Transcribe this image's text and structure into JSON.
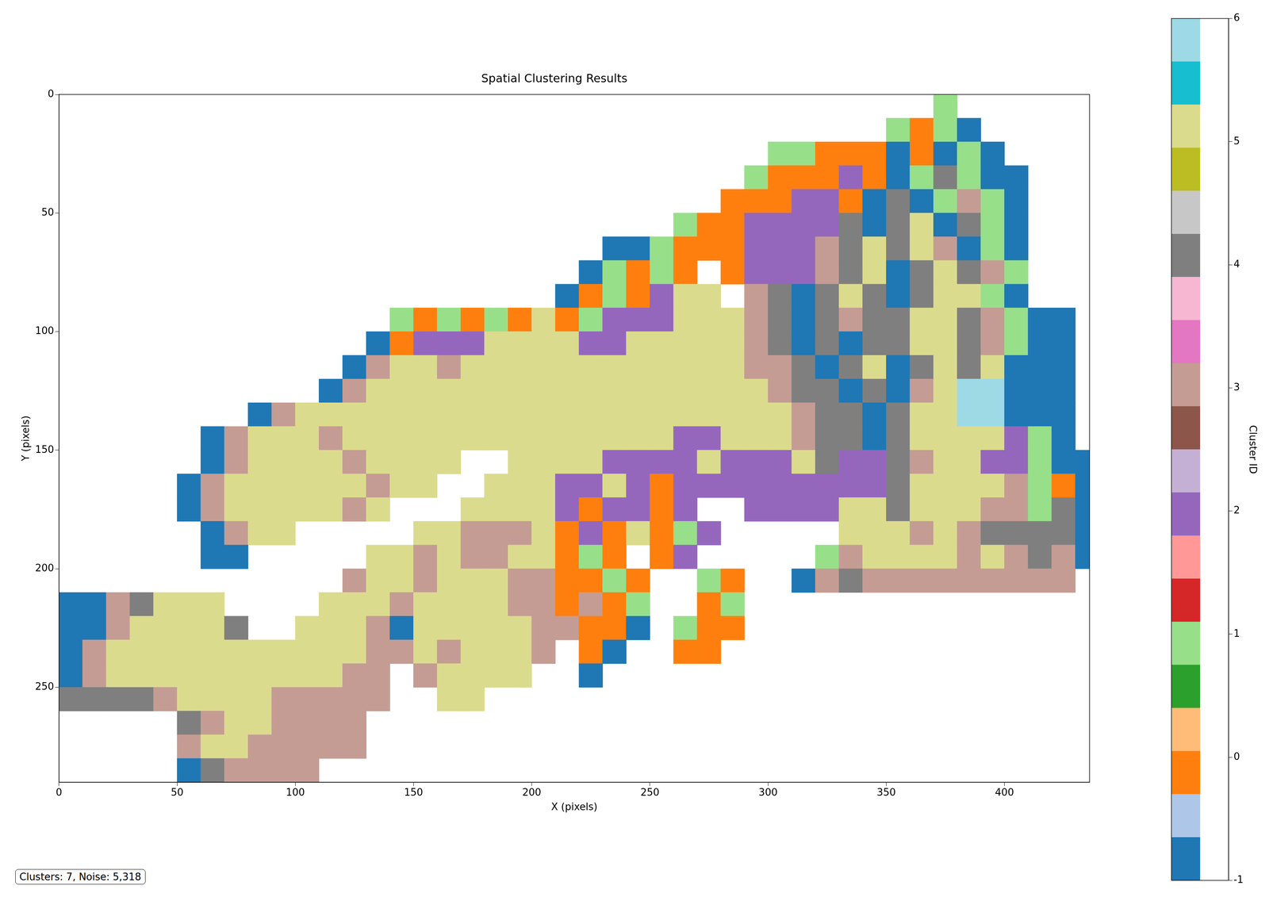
{
  "chart_data": {
    "type": "heatmap",
    "title": "Spatial Clustering Results",
    "x_label": "X (pixels)",
    "y_label": "Y (pixels)",
    "xlim": [
      0,
      436
    ],
    "ylim": [
      290,
      0
    ],
    "xticks": [
      0,
      50,
      100,
      150,
      200,
      250,
      300,
      350,
      400
    ],
    "yticks": [
      0,
      50,
      100,
      150,
      200,
      250
    ],
    "grid": false,
    "annotation": "Clusters: 7, Noise: 5,318",
    "x_bins": [
      0,
      10,
      20,
      30,
      40,
      50,
      60,
      70,
      80,
      90,
      100,
      110,
      120,
      130,
      140,
      150,
      160,
      170,
      180,
      190,
      200,
      210,
      220,
      230,
      240,
      250,
      260,
      270,
      280,
      290,
      300,
      310,
      320,
      330,
      340,
      350,
      360,
      370,
      380,
      390,
      400,
      410,
      420,
      430,
      440
    ],
    "y_bins": [
      0,
      10,
      20,
      30,
      40,
      50,
      60,
      70,
      80,
      90,
      100,
      110,
      120,
      130,
      140,
      150,
      160,
      170,
      180,
      190,
      200,
      210,
      220,
      230,
      240,
      250,
      260,
      270,
      280,
      290
    ],
    "cells": [
      [
        null,
        null,
        null,
        null,
        null,
        null,
        null,
        null,
        null,
        null,
        null,
        null,
        null,
        null,
        null,
        null,
        null,
        null,
        null,
        null,
        null,
        null,
        null,
        null,
        null,
        null,
        null,
        null,
        null,
        null,
        null,
        null,
        null,
        null,
        null,
        null,
        null,
        1,
        null,
        null,
        null,
        null,
        null,
        null
      ],
      [
        null,
        null,
        null,
        null,
        null,
        null,
        null,
        null,
        null,
        null,
        null,
        null,
        null,
        null,
        null,
        null,
        null,
        null,
        null,
        null,
        null,
        null,
        null,
        null,
        null,
        null,
        null,
        null,
        null,
        null,
        null,
        null,
        null,
        null,
        null,
        1,
        0,
        1,
        -1,
        null,
        null,
        null,
        null,
        null
      ],
      [
        null,
        null,
        null,
        null,
        null,
        null,
        null,
        null,
        null,
        null,
        null,
        null,
        null,
        null,
        null,
        null,
        null,
        null,
        null,
        null,
        null,
        null,
        null,
        null,
        null,
        null,
        null,
        null,
        null,
        null,
        1,
        1,
        0,
        0,
        0,
        -1,
        0,
        -1,
        1,
        -1,
        null,
        null,
        null,
        null
      ],
      [
        null,
        null,
        null,
        null,
        null,
        null,
        null,
        null,
        null,
        null,
        null,
        null,
        null,
        null,
        null,
        null,
        null,
        null,
        null,
        null,
        null,
        null,
        null,
        null,
        null,
        null,
        null,
        null,
        null,
        1,
        0,
        0,
        0,
        2,
        0,
        -1,
        1,
        4,
        1,
        -1,
        -1,
        null,
        null,
        null
      ],
      [
        null,
        null,
        null,
        null,
        null,
        null,
        null,
        null,
        null,
        null,
        null,
        null,
        null,
        null,
        null,
        null,
        null,
        null,
        null,
        null,
        null,
        null,
        null,
        null,
        null,
        null,
        null,
        null,
        0,
        0,
        0,
        2,
        2,
        0,
        -1,
        4,
        -1,
        1,
        3,
        1,
        -1,
        null,
        null,
        null
      ],
      [
        null,
        null,
        null,
        null,
        null,
        null,
        null,
        null,
        null,
        null,
        null,
        null,
        null,
        null,
        null,
        null,
        null,
        null,
        null,
        null,
        null,
        null,
        null,
        null,
        null,
        null,
        1,
        0,
        0,
        2,
        2,
        2,
        2,
        4,
        -1,
        4,
        5,
        -1,
        4,
        1,
        -1,
        null,
        null,
        null
      ],
      [
        null,
        null,
        null,
        null,
        null,
        null,
        null,
        null,
        null,
        null,
        null,
        null,
        null,
        null,
        null,
        null,
        null,
        null,
        null,
        null,
        null,
        null,
        null,
        -1,
        -1,
        1,
        0,
        0,
        0,
        2,
        2,
        2,
        3,
        4,
        5,
        4,
        5,
        3,
        -1,
        1,
        -1,
        null,
        null,
        null
      ],
      [
        null,
        null,
        null,
        null,
        null,
        null,
        null,
        null,
        null,
        null,
        null,
        null,
        null,
        null,
        null,
        null,
        null,
        null,
        null,
        null,
        null,
        null,
        -1,
        1,
        0,
        1,
        0,
        null,
        0,
        2,
        2,
        2,
        3,
        4,
        5,
        -1,
        4,
        5,
        4,
        3,
        1,
        null,
        null,
        null
      ],
      [
        null,
        null,
        null,
        null,
        null,
        null,
        null,
        null,
        null,
        null,
        null,
        null,
        null,
        null,
        null,
        null,
        null,
        null,
        null,
        null,
        null,
        -1,
        0,
        1,
        0,
        2,
        5,
        5,
        null,
        3,
        4,
        -1,
        4,
        5,
        4,
        -1,
        4,
        5,
        5,
        1,
        -1,
        null,
        null,
        null
      ],
      [
        null,
        null,
        null,
        null,
        null,
        null,
        null,
        null,
        null,
        null,
        null,
        null,
        null,
        null,
        1,
        0,
        1,
        0,
        1,
        0,
        5,
        0,
        1,
        2,
        2,
        2,
        5,
        5,
        5,
        3,
        4,
        -1,
        4,
        3,
        4,
        4,
        5,
        5,
        4,
        3,
        1,
        -1,
        -1,
        null
      ],
      [
        null,
        null,
        null,
        null,
        null,
        null,
        null,
        null,
        null,
        null,
        null,
        null,
        null,
        -1,
        0,
        2,
        2,
        2,
        5,
        5,
        5,
        5,
        2,
        2,
        5,
        5,
        5,
        5,
        5,
        3,
        4,
        -1,
        4,
        -1,
        4,
        4,
        5,
        5,
        4,
        3,
        1,
        -1,
        -1,
        null
      ],
      [
        null,
        null,
        null,
        null,
        null,
        null,
        null,
        null,
        null,
        null,
        null,
        null,
        -1,
        3,
        5,
        5,
        3,
        5,
        5,
        5,
        5,
        5,
        5,
        5,
        5,
        5,
        5,
        5,
        5,
        3,
        3,
        4,
        -1,
        4,
        5,
        -1,
        4,
        5,
        4,
        5,
        -1,
        -1,
        -1,
        null
      ],
      [
        null,
        null,
        null,
        null,
        null,
        null,
        null,
        null,
        null,
        null,
        null,
        -1,
        3,
        5,
        5,
        5,
        5,
        5,
        5,
        5,
        5,
        5,
        5,
        5,
        5,
        5,
        5,
        5,
        5,
        5,
        3,
        4,
        4,
        -1,
        4,
        -1,
        3,
        5,
        6,
        6,
        -1,
        -1,
        -1,
        null
      ],
      [
        null,
        null,
        null,
        null,
        null,
        null,
        null,
        null,
        -1,
        3,
        5,
        5,
        5,
        5,
        5,
        5,
        5,
        5,
        5,
        5,
        5,
        5,
        5,
        5,
        5,
        5,
        5,
        5,
        5,
        5,
        5,
        3,
        4,
        4,
        -1,
        4,
        5,
        5,
        6,
        6,
        -1,
        -1,
        -1,
        null
      ],
      [
        null,
        null,
        null,
        null,
        null,
        null,
        -1,
        3,
        5,
        5,
        5,
        3,
        5,
        5,
        5,
        5,
        5,
        5,
        5,
        5,
        5,
        5,
        5,
        5,
        5,
        5,
        2,
        2,
        5,
        5,
        5,
        3,
        4,
        4,
        -1,
        4,
        5,
        5,
        5,
        5,
        2,
        1,
        -1,
        null
      ],
      [
        null,
        null,
        null,
        null,
        null,
        null,
        -1,
        3,
        5,
        5,
        5,
        5,
        3,
        5,
        5,
        5,
        5,
        null,
        null,
        5,
        5,
        5,
        5,
        2,
        2,
        2,
        2,
        5,
        2,
        2,
        2,
        5,
        4,
        2,
        2,
        4,
        3,
        5,
        5,
        2,
        2,
        1,
        -1,
        -1
      ],
      [
        null,
        null,
        null,
        null,
        null,
        -1,
        3,
        5,
        5,
        5,
        5,
        5,
        5,
        3,
        5,
        5,
        null,
        null,
        5,
        5,
        5,
        2,
        2,
        5,
        2,
        0,
        2,
        2,
        2,
        2,
        2,
        2,
        2,
        2,
        2,
        4,
        5,
        5,
        5,
        5,
        3,
        1,
        0,
        -1
      ],
      [
        null,
        null,
        null,
        null,
        null,
        -1,
        3,
        5,
        5,
        5,
        5,
        5,
        3,
        5,
        null,
        null,
        null,
        5,
        5,
        5,
        5,
        2,
        0,
        2,
        2,
        0,
        2,
        null,
        null,
        2,
        2,
        2,
        2,
        5,
        5,
        4,
        5,
        5,
        5,
        3,
        3,
        1,
        4,
        -1
      ],
      [
        null,
        null,
        null,
        null,
        null,
        null,
        -1,
        3,
        5,
        5,
        null,
        null,
        null,
        null,
        null,
        5,
        5,
        3,
        3,
        3,
        5,
        0,
        2,
        0,
        5,
        0,
        1,
        2,
        null,
        null,
        null,
        null,
        null,
        5,
        5,
        5,
        3,
        5,
        3,
        4,
        4,
        4,
        4,
        -1
      ],
      [
        null,
        null,
        null,
        null,
        null,
        null,
        -1,
        -1,
        null,
        null,
        null,
        null,
        null,
        5,
        5,
        3,
        5,
        3,
        3,
        5,
        5,
        0,
        1,
        0,
        null,
        0,
        2,
        null,
        null,
        null,
        null,
        null,
        1,
        3,
        5,
        5,
        5,
        5,
        3,
        5,
        3,
        4,
        3,
        -1
      ],
      [
        null,
        null,
        null,
        null,
        null,
        null,
        null,
        null,
        null,
        null,
        null,
        null,
        3,
        5,
        5,
        3,
        5,
        5,
        5,
        3,
        3,
        0,
        0,
        1,
        0,
        null,
        null,
        1,
        0,
        null,
        null,
        -1,
        3,
        4,
        3,
        3,
        3,
        3,
        3,
        3,
        3,
        3,
        3,
        null
      ],
      [
        -1,
        -1,
        3,
        4,
        5,
        5,
        5,
        null,
        null,
        null,
        null,
        5,
        5,
        5,
        3,
        5,
        5,
        5,
        5,
        3,
        3,
        0,
        3,
        0,
        1,
        null,
        null,
        0,
        1,
        null,
        null,
        null,
        null,
        null,
        null,
        null,
        null,
        null,
        null,
        null,
        null,
        null,
        null,
        null
      ],
      [
        -1,
        -1,
        3,
        5,
        5,
        5,
        5,
        4,
        null,
        null,
        5,
        5,
        5,
        3,
        -1,
        5,
        5,
        5,
        5,
        5,
        3,
        3,
        0,
        0,
        -1,
        null,
        1,
        0,
        0,
        null,
        null,
        null,
        null,
        null,
        null,
        null,
        null,
        null,
        null,
        null,
        null,
        null,
        null,
        null
      ],
      [
        -1,
        3,
        5,
        5,
        5,
        5,
        5,
        5,
        5,
        5,
        5,
        5,
        5,
        3,
        3,
        5,
        3,
        5,
        5,
        5,
        3,
        null,
        0,
        -1,
        null,
        null,
        0,
        0,
        null,
        null,
        null,
        null,
        null,
        null,
        null,
        null,
        null,
        null,
        null,
        null,
        null,
        null,
        null,
        null
      ],
      [
        -1,
        3,
        5,
        5,
        5,
        5,
        5,
        5,
        5,
        5,
        5,
        5,
        3,
        3,
        null,
        3,
        5,
        5,
        5,
        5,
        null,
        null,
        -1,
        null,
        null,
        null,
        null,
        null,
        null,
        null,
        null,
        null,
        null,
        null,
        null,
        null,
        null,
        null,
        null,
        null,
        null,
        null,
        null,
        null
      ],
      [
        4,
        4,
        4,
        4,
        3,
        5,
        5,
        5,
        5,
        3,
        3,
        3,
        3,
        3,
        null,
        null,
        5,
        5,
        null,
        null,
        null,
        null,
        null,
        null,
        null,
        null,
        null,
        null,
        null,
        null,
        null,
        null,
        null,
        null,
        null,
        null,
        null,
        null,
        null,
        null,
        null,
        null,
        null,
        null
      ],
      [
        null,
        null,
        null,
        null,
        null,
        4,
        3,
        5,
        5,
        3,
        3,
        3,
        3,
        null,
        null,
        null,
        null,
        null,
        null,
        null,
        null,
        null,
        null,
        null,
        null,
        null,
        null,
        null,
        null,
        null,
        null,
        null,
        null,
        null,
        null,
        null,
        null,
        null,
        null,
        null,
        null,
        null,
        null,
        null
      ],
      [
        null,
        null,
        null,
        null,
        null,
        3,
        5,
        5,
        3,
        3,
        3,
        3,
        3,
        null,
        null,
        null,
        null,
        null,
        null,
        null,
        null,
        null,
        null,
        null,
        null,
        null,
        null,
        null,
        null,
        null,
        null,
        null,
        null,
        null,
        null,
        null,
        null,
        null,
        null,
        null,
        null,
        null,
        null,
        null
      ],
      [
        null,
        null,
        null,
        null,
        null,
        -1,
        4,
        3,
        3,
        3,
        3,
        null,
        null,
        null,
        null,
        null,
        null,
        null,
        null,
        null,
        null,
        null,
        null,
        null,
        null,
        null,
        null,
        null,
        null,
        null,
        null,
        null,
        null,
        null,
        null,
        null,
        null,
        null,
        null,
        null,
        null,
        null,
        null,
        null
      ]
    ],
    "colorbar": {
      "label": "Cluster ID",
      "range": [
        -1,
        6
      ],
      "ticks": [
        -1,
        0,
        1,
        2,
        3,
        4,
        5,
        6
      ],
      "colors": [
        "#1f77b4",
        "#aec7e8",
        "#ff7f0e",
        "#ffbb78",
        "#2ca02c",
        "#98df8a",
        "#d62728",
        "#ff9896",
        "#9467bd",
        "#c5b0d5",
        "#8c564b",
        "#c49c94",
        "#e377c2",
        "#f7b6d2",
        "#7f7f7f",
        "#c7c7c7",
        "#bcbd22",
        "#dbdb8d",
        "#17becf",
        "#9edae5"
      ]
    }
  }
}
